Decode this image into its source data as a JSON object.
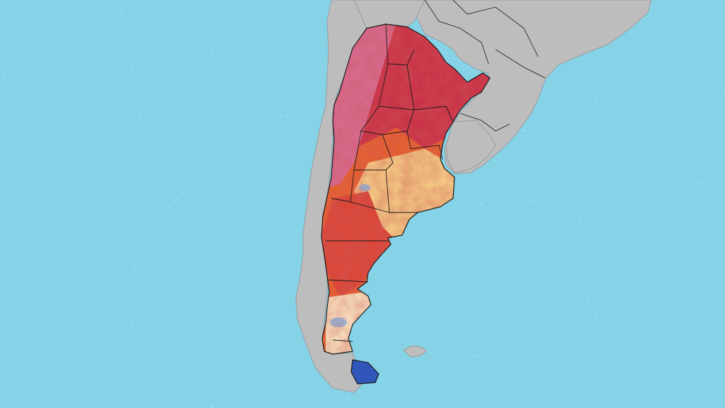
{
  "map": {
    "colors": {
      "ocean": "#86D3E8",
      "ocean_speckle": "#A9E3F2",
      "land": "#BDBDBD",
      "land_shadow": "#9A9A9A",
      "border": "#1A1A1A",
      "heat_extreme": "#C92E45",
      "heat_very_high": "#DC4434",
      "heat_high": "#E8612B",
      "heat_moderate": "#F29A45",
      "heat_mild": "#F8D487",
      "heat_low": "#FCEFC8",
      "andes_pink": "#D86B95",
      "cold_light": "#8FC3E6",
      "cold_deep": "#2F56B8"
    },
    "regions": [
      "argentina-heat-anomaly",
      "chile",
      "bolivia",
      "paraguay",
      "brazil",
      "uruguay",
      "tierra-del-fuego",
      "falkland-islands"
    ]
  }
}
